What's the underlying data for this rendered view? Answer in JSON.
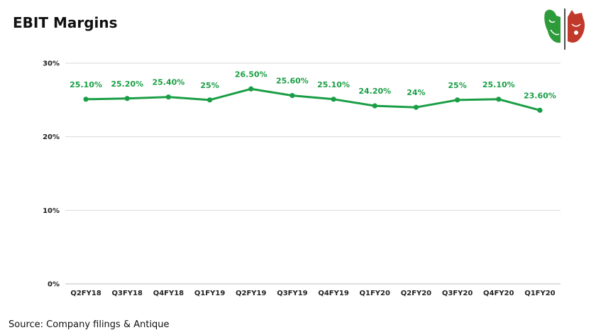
{
  "title": "EBIT Margins",
  "source": "Source: Company filings & Antique",
  "logo": {
    "icon": "bull-bear-logo-icon"
  },
  "colors": {
    "line": "#1a9e45",
    "label": "#1a9e45",
    "grid": "#d9d9d9",
    "axis": "#bfbfbf"
  },
  "chart_data": {
    "type": "line",
    "categories": [
      "Q2FY18",
      "Q3FY18",
      "Q4FY18",
      "Q1FY19",
      "Q2FY19",
      "Q3FY19",
      "Q4FY19",
      "Q1FY20",
      "Q2FY20",
      "Q3FY20",
      "Q4FY20",
      "Q1FY20"
    ],
    "values": [
      25.1,
      25.2,
      25.4,
      25.0,
      26.5,
      25.6,
      25.1,
      24.2,
      24.0,
      25.0,
      25.1,
      23.6
    ],
    "data_labels": [
      "25.10%",
      "25.20%",
      "25.40%",
      "25%",
      "26.50%",
      "25.60%",
      "25.10%",
      "24.20%",
      "24%",
      "25%",
      "25.10%",
      "23.60%"
    ],
    "yticks": [
      0,
      10,
      20,
      30
    ],
    "ytick_labels": [
      "0%",
      "10%",
      "20%",
      "30%"
    ],
    "ylim": [
      0,
      30
    ],
    "grid": true,
    "legend": "none"
  }
}
